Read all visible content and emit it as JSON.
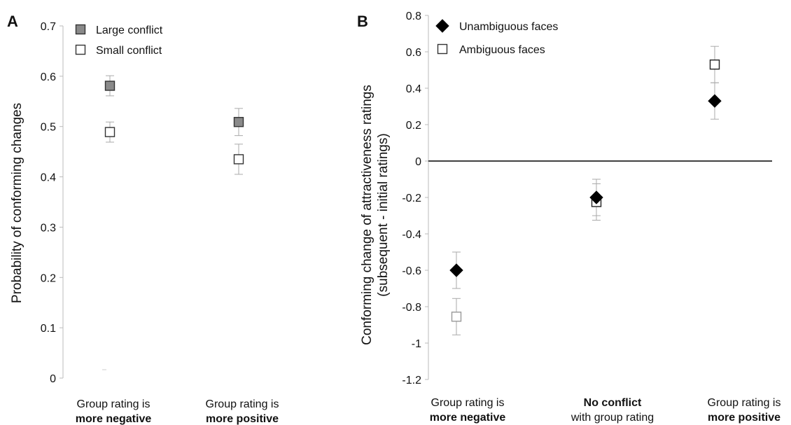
{
  "chart_data": [
    {
      "panel_label": "A",
      "type": "scatter",
      "ylabel": "Probability of conforming changes",
      "ylim": [
        0,
        0.7
      ],
      "yticks": [
        "0",
        "0.1",
        "0.2",
        "0.3",
        "0.4",
        "0.5",
        "0.6",
        "0.7"
      ],
      "categories": [
        {
          "line1": "Group rating is",
          "line2": "more negative"
        },
        {
          "line1": "Group rating is",
          "line2": "more positive"
        }
      ],
      "legend_position": "top-left",
      "series": [
        {
          "name": "Large conflict",
          "marker": "square",
          "color": "#8a8a8a",
          "values": [
            0.581,
            0.509
          ],
          "errors": [
            0.02,
            0.027
          ]
        },
        {
          "name": "Small conflict",
          "marker": "square",
          "color": "#ffffff",
          "values": [
            0.489,
            0.435
          ],
          "errors": [
            0.02,
            0.03
          ]
        }
      ]
    },
    {
      "panel_label": "B",
      "type": "scatter",
      "ylabel_line1": "Conforming change of attractiveness ratings",
      "ylabel_line2": "(subsequent - initial ratings)",
      "ylim": [
        -1.2,
        0.8
      ],
      "yticks": [
        "0.8",
        "0.6",
        "0.4",
        "0.2",
        "0",
        "-0.2",
        "-0.4",
        "-0.6",
        "-0.8",
        "-1",
        "-1.2"
      ],
      "categories": [
        {
          "line1": "Group rating is",
          "line2": "more negative",
          "bold_line": 2
        },
        {
          "line1": "No conflict",
          "line2": "with group rating",
          "bold_line": 1
        },
        {
          "line1": "Group rating is",
          "line2": "more positive",
          "bold_line": 2
        }
      ],
      "legend_position": "top-left",
      "zero_line": true,
      "series": [
        {
          "name": "Unambiguous faces",
          "marker": "diamond",
          "color": "#000000",
          "values": [
            -0.6,
            -0.2,
            0.33
          ],
          "errors": [
            0.1,
            0.1,
            0.1
          ]
        },
        {
          "name": "Ambiguous faces",
          "marker": "square",
          "color": "#ffffff",
          "values": [
            -0.855,
            -0.225,
            0.53
          ],
          "errors": [
            0.1,
            0.1,
            0.1
          ]
        }
      ]
    }
  ]
}
